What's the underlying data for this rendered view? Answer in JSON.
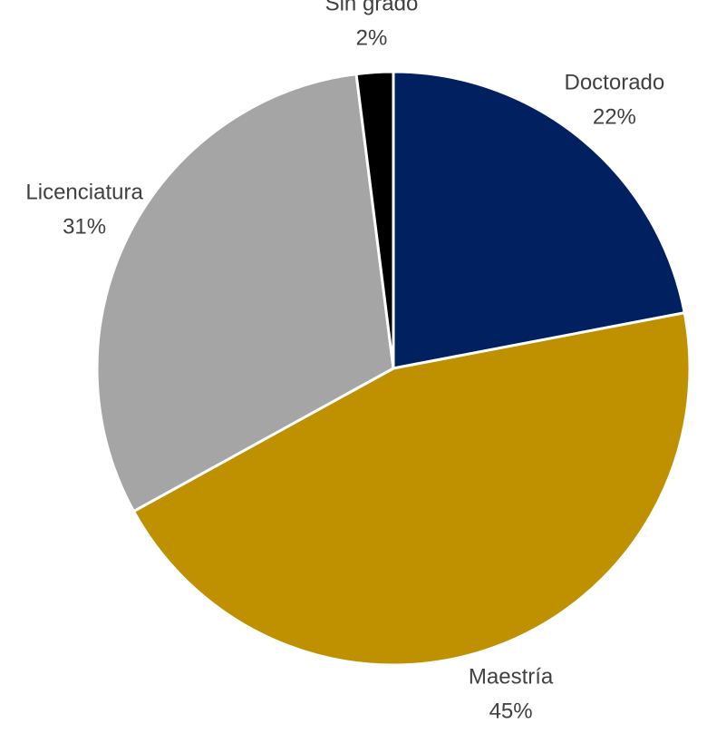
{
  "chart_data": {
    "type": "pie",
    "categories": [
      "Doctorado",
      "Maestría",
      "Licenciatura",
      "Sin grado"
    ],
    "values": [
      22,
      45,
      31,
      2
    ],
    "value_labels": [
      "22%",
      "45%",
      "31%",
      "2%"
    ],
    "colors": [
      "#002060",
      "#bf9000",
      "#a5a5a5",
      "#000000"
    ]
  }
}
